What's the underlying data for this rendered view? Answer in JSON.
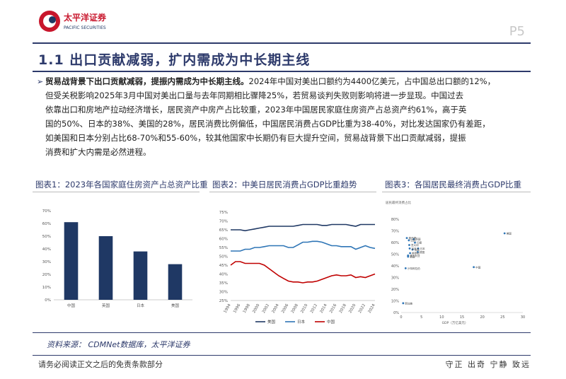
{
  "header": {
    "logo_name_cn": "太平洋证券",
    "logo_name_en": "PACIFIC SECURITIES",
    "page_number": "P5"
  },
  "title": "1.1 出口贡献减弱，扩内需成为中长期主线",
  "paragraph": {
    "bold": "贸易战背景下出口贡献减弱，提振内需成为中长期主线。",
    "lines": [
      "2024年中国对美出口额约为4400亿美元，占中国总出口额的12%，",
      "但受关税影响2025年3月中国对美出口量与去年同期相比骤降25%，若贸易谈判失败则影响将进一步显现。中国过去",
      "依靠出口和房地产拉动经济增长，居民资产中房产占比较重，2023年中国居民家庭住房资产占总资产约61%，高于英",
      "国的50%、日本的38%、美国的28%，居民消费比例偏低，中国居民消费占GDP比重为38-40%，对比发达国家仍有差距，",
      "如美国和日本分别占比68-70%和55-60%，较其他国家中长期仍有巨大提升空间，贸易战背景下出口贡献减弱，提振",
      "消费和扩大内需是必然进程。"
    ]
  },
  "captions": {
    "chart1": "图表1：2023年各国家庭住房资产占总资产比重",
    "chart2": "图表2：中美日居民消费占GDP比重趋势",
    "chart3": "图表3：各国居民最终消费占GDP比重"
  },
  "source": "资料来源： CDMNet数据库，太平洋证券",
  "footer": {
    "disclaimer": "请务必阅读正文之后的免责条款部分",
    "motto": "守正 出奇 宁静 致远"
  },
  "colors": {
    "navy": "#1f3864",
    "blue": "#2e75b6",
    "red": "#c00000",
    "title": "#2d3a6b"
  },
  "chart_data": [
    {
      "type": "bar",
      "categories": [
        "中国",
        "英国",
        "日本",
        "美国"
      ],
      "values": [
        61,
        50,
        38,
        28
      ],
      "ylim": [
        0,
        70
      ],
      "yticks": [
        "0%",
        "10%",
        "20%",
        "30%",
        "40%",
        "50%",
        "60%",
        "70%"
      ],
      "grid": false
    },
    {
      "type": "line",
      "x": [
        1994,
        1995,
        1996,
        1997,
        1998,
        1999,
        2000,
        2001,
        2002,
        2003,
        2004,
        2005,
        2006,
        2007,
        2008,
        2009,
        2010,
        2011,
        2012,
        2013,
        2014,
        2015,
        2016,
        2017,
        2018,
        2019,
        2020,
        2021,
        2022,
        2023,
        2024
      ],
      "xticks": [
        "1994",
        "1996",
        "1998",
        "2000",
        "2002",
        "2004",
        "2006",
        "2008",
        "2010",
        "2012",
        "2014",
        "2016",
        "2018",
        "2020",
        "2022",
        "2024"
      ],
      "ylim": [
        25,
        75
      ],
      "yticks": [
        "25%",
        "30%",
        "35%",
        "40%",
        "45%",
        "50%",
        "55%",
        "60%",
        "65%",
        "70%",
        "75%"
      ],
      "series": [
        {
          "name": "美国",
          "color": "#1f3864",
          "values": [
            65,
            65,
            65,
            64.5,
            65,
            65.5,
            66,
            66.5,
            67,
            67,
            67,
            67,
            67,
            67,
            67.5,
            68,
            68,
            68,
            68,
            67.5,
            67.5,
            68,
            68,
            68,
            68,
            67.5,
            67,
            68,
            68,
            68,
            68
          ]
        },
        {
          "name": "日本",
          "color": "#2e75b6",
          "values": [
            53,
            53,
            53,
            54,
            54,
            55,
            55,
            55.5,
            56,
            56,
            56,
            56,
            55,
            55,
            56.5,
            58,
            58,
            58.5,
            58.5,
            58,
            57,
            56,
            56,
            55.5,
            55.5,
            55.5,
            54,
            55,
            56,
            55,
            54.5
          ]
        },
        {
          "name": "中国",
          "color": "#c00000",
          "values": [
            45,
            47,
            47,
            46,
            46,
            46,
            46,
            45,
            43,
            41,
            39,
            37.5,
            36,
            35.5,
            35.5,
            35,
            35.5,
            35.5,
            36,
            37,
            38,
            39,
            39.5,
            39,
            39,
            39.5,
            38,
            38.5,
            38,
            39,
            40
          ]
        }
      ],
      "legend": "bottom",
      "grid": false
    },
    {
      "type": "scatter",
      "title": "居民最终消费占比",
      "xlabel": "GDP（万亿美元）",
      "xlim": [
        0,
        30
      ],
      "ylim": [
        0,
        85
      ],
      "xticks": [
        "0",
        "5",
        "10",
        "15",
        "20",
        "25",
        "30"
      ],
      "yticks": [
        "0%",
        "10%",
        "20%",
        "30%",
        "40%",
        "50%",
        "60%",
        "70%",
        "80%"
      ],
      "points": [
        {
          "label": "美国",
          "x": 25.5,
          "y": 68
        },
        {
          "label": "英国",
          "x": 3.1,
          "y": 63
        },
        {
          "label": "墨西哥",
          "x": 1.4,
          "y": 64
        },
        {
          "label": "法国",
          "x": 2.8,
          "y": 54
        },
        {
          "label": "意大利",
          "x": 2.0,
          "y": 58
        },
        {
          "label": "印度",
          "x": 3.4,
          "y": 60
        },
        {
          "label": "巴西",
          "x": 1.9,
          "y": 62
        },
        {
          "label": "日本",
          "x": 4.2,
          "y": 55
        },
        {
          "label": "加拿大",
          "x": 2.1,
          "y": 55
        },
        {
          "label": "德国",
          "x": 4.1,
          "y": 52
        },
        {
          "label": "韩国",
          "x": 1.7,
          "y": 48
        },
        {
          "label": "澳大利亚",
          "x": 1.7,
          "y": 49
        },
        {
          "label": "俄罗斯",
          "x": 2.2,
          "y": 51
        },
        {
          "label": "沙特阿拉伯",
          "x": 1.1,
          "y": 38
        },
        {
          "label": "中国",
          "x": 17.9,
          "y": 39
        },
        {
          "label": "新加坡",
          "x": 0.5,
          "y": 8
        }
      ]
    }
  ]
}
